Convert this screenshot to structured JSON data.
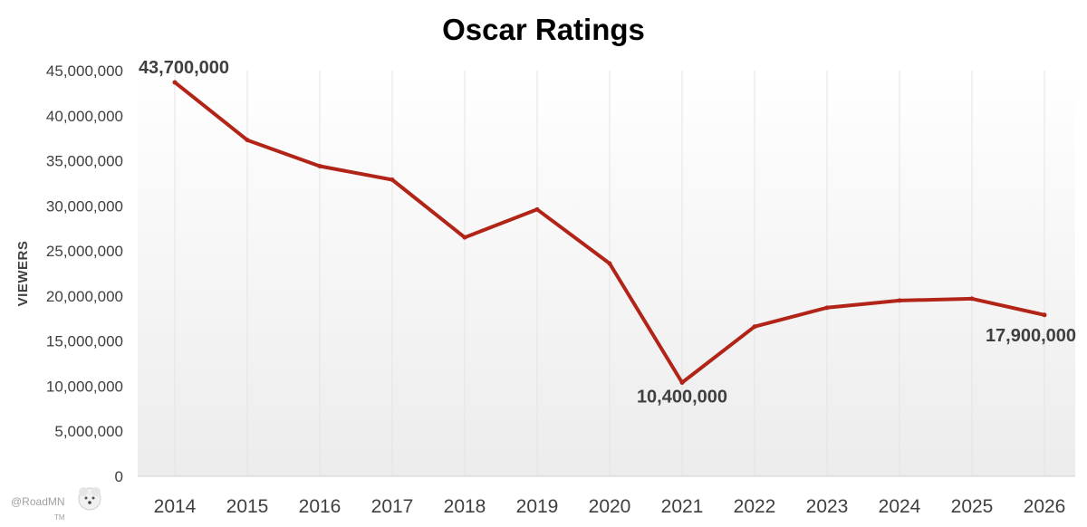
{
  "chart_data": {
    "type": "line",
    "title": "Oscar Ratings",
    "xlabel": "",
    "ylabel": "VIEWERS",
    "ylim": [
      0,
      45000000
    ],
    "y_ticks": [
      0,
      5000000,
      10000000,
      15000000,
      20000000,
      25000000,
      30000000,
      35000000,
      40000000,
      45000000
    ],
    "y_tick_labels": [
      "0",
      "5,000,000",
      "10,000,000",
      "15,000,000",
      "20,000,000",
      "25,000,000",
      "30,000,000",
      "35,000,000",
      "40,000,000",
      "45,000,000"
    ],
    "categories": [
      "2014",
      "2015",
      "2016",
      "2017",
      "2018",
      "2019",
      "2020",
      "2021",
      "2022",
      "2023",
      "2024",
      "2025",
      "2026"
    ],
    "series": [
      {
        "name": "Viewers",
        "color": "#b22418",
        "values": [
          43700000,
          37300000,
          34400000,
          32900000,
          26500000,
          29600000,
          23600000,
          10400000,
          16600000,
          18700000,
          19500000,
          19700000,
          17900000
        ]
      }
    ],
    "data_labels": [
      {
        "index": 0,
        "text": "43,700,000"
      },
      {
        "index": 7,
        "text": "10,400,000"
      },
      {
        "index": 12,
        "text": "17,900,000"
      }
    ],
    "grid": "vertical",
    "legend": "none"
  },
  "watermark": {
    "handle": "@RoadMN",
    "mark": "TM"
  }
}
